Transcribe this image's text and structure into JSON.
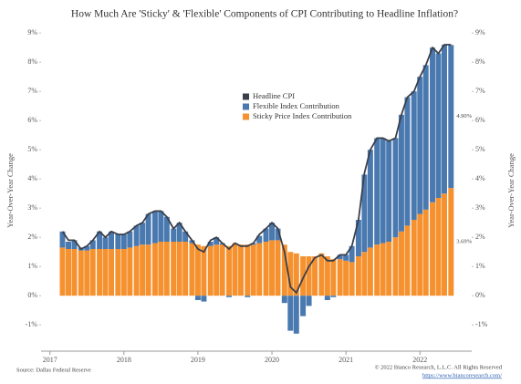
{
  "chart_data": {
    "type": "bar",
    "stacked": true,
    "title": "How Much Are 'Sticky' & 'Flexible' Components of CPI Contributing to Headline Inflation?",
    "ylabel": "Year-Over-Year Change",
    "y2label": "Year-Over-Year Change",
    "source": "Source: Dallas Federal Reserve",
    "copyright": "© 2022 Bianco Research, L.L.C. All Rights Reserved",
    "link": "https://www.biancoresearch.com/",
    "xlim": [
      2016.88,
      2022.7
    ],
    "xticks": [
      2017,
      2018,
      2019,
      2020,
      2021,
      2022
    ],
    "ylim": [
      -1.9,
      9.1
    ],
    "yticks": [
      {
        "value": -1,
        "label": "-1%"
      },
      {
        "value": 0,
        "label": "0%"
      },
      {
        "value": 1,
        "label": "1%"
      },
      {
        "value": 2,
        "label": "2%"
      },
      {
        "value": 3,
        "label": "3%"
      },
      {
        "value": 4,
        "label": "4%"
      },
      {
        "value": 5,
        "label": "5%"
      },
      {
        "value": 6,
        "label": "6%"
      },
      {
        "value": 7,
        "label": "7%"
      },
      {
        "value": 8,
        "label": "8%"
      },
      {
        "value": 9,
        "label": "9%"
      }
    ],
    "y2lim": [
      -1.9,
      9.1
    ],
    "y2ticks": [
      {
        "value": -1,
        "label": "-1%"
      },
      {
        "value": 0,
        "label": "0%"
      },
      {
        "value": 1,
        "label": "1%"
      },
      {
        "value": 2,
        "label": "2%"
      },
      {
        "value": 3,
        "label": "3%"
      },
      {
        "value": 4,
        "label": "4%"
      },
      {
        "value": 5,
        "label": "5%"
      },
      {
        "value": 6,
        "label": "6%"
      },
      {
        "value": 7,
        "label": "7%"
      },
      {
        "value": 8,
        "label": "8%"
      },
      {
        "value": 9,
        "label": "9%"
      }
    ],
    "legend": "upper center",
    "x": [
      2017.17,
      2017.25,
      2017.33,
      2017.42,
      2017.5,
      2017.58,
      2017.67,
      2017.75,
      2017.83,
      2017.92,
      2018.0,
      2018.08,
      2018.17,
      2018.25,
      2018.33,
      2018.42,
      2018.5,
      2018.58,
      2018.67,
      2018.75,
      2018.83,
      2018.92,
      2019.0,
      2019.08,
      2019.17,
      2019.25,
      2019.33,
      2019.42,
      2019.5,
      2019.58,
      2019.67,
      2019.75,
      2019.83,
      2019.92,
      2020.0,
      2020.08,
      2020.17,
      2020.25,
      2020.33,
      2020.42,
      2020.5,
      2020.58,
      2020.67,
      2020.75,
      2020.83,
      2020.92,
      2021.0,
      2021.08,
      2021.17,
      2021.25,
      2021.33,
      2021.42,
      2021.5,
      2021.58,
      2021.67,
      2021.75,
      2021.83,
      2021.92,
      2022.0,
      2022.08,
      2022.17,
      2022.25,
      2022.33,
      2022.42
    ],
    "series": [
      {
        "name": "Headline CPI",
        "type": "line",
        "color": "#3b3f4a",
        "values": [
          2.2,
          1.9,
          1.9,
          1.6,
          1.7,
          1.9,
          2.2,
          2.0,
          2.2,
          2.1,
          2.1,
          2.2,
          2.4,
          2.5,
          2.8,
          2.9,
          2.9,
          2.7,
          2.3,
          2.5,
          2.2,
          1.9,
          1.6,
          1.5,
          1.9,
          2.0,
          1.8,
          1.6,
          1.8,
          1.7,
          1.7,
          1.8,
          2.1,
          2.3,
          2.5,
          2.3,
          1.5,
          0.3,
          0.1,
          0.6,
          1.0,
          1.3,
          1.4,
          1.2,
          1.2,
          1.4,
          1.4,
          1.7,
          2.6,
          4.2,
          5.0,
          5.4,
          5.4,
          5.3,
          5.4,
          6.2,
          6.8,
          7.0,
          7.5,
          7.9,
          8.5,
          8.3,
          8.6,
          8.6
        ]
      },
      {
        "name": "Flexible Index Contribution",
        "type": "bar",
        "color": "#4a79b0",
        "values": [
          0.55,
          0.25,
          0.3,
          0.1,
          0.15,
          0.3,
          0.6,
          0.4,
          0.6,
          0.5,
          0.5,
          0.55,
          0.7,
          0.75,
          1.05,
          1.1,
          1.05,
          0.85,
          0.45,
          0.65,
          0.35,
          0.1,
          -0.15,
          -0.2,
          0.15,
          0.25,
          0.05,
          -0.05,
          0.0,
          0.0,
          -0.05,
          0.05,
          0.25,
          0.45,
          0.6,
          0.4,
          -0.25,
          -1.2,
          -1.3,
          -0.7,
          -0.35,
          0.0,
          0.0,
          -0.15,
          -0.05,
          0.15,
          0.2,
          0.55,
          1.25,
          2.65,
          3.35,
          3.65,
          3.6,
          3.45,
          3.4,
          4.0,
          4.4,
          4.4,
          4.7,
          4.95,
          5.3,
          4.95,
          5.1,
          4.9
        ]
      },
      {
        "name": "Sticky Price Index Contribution",
        "type": "bar",
        "color": "#f5922f",
        "values": [
          1.65,
          1.6,
          1.6,
          1.55,
          1.55,
          1.6,
          1.6,
          1.6,
          1.6,
          1.6,
          1.6,
          1.65,
          1.7,
          1.75,
          1.75,
          1.8,
          1.85,
          1.85,
          1.85,
          1.85,
          1.85,
          1.8,
          1.75,
          1.7,
          1.7,
          1.75,
          1.75,
          1.7,
          1.8,
          1.75,
          1.75,
          1.75,
          1.8,
          1.85,
          1.9,
          1.9,
          1.75,
          1.5,
          1.45,
          1.35,
          1.35,
          1.35,
          1.45,
          1.35,
          1.25,
          1.25,
          1.2,
          1.15,
          1.35,
          1.5,
          1.65,
          1.75,
          1.8,
          1.85,
          2.0,
          2.2,
          2.4,
          2.6,
          2.8,
          2.95,
          3.2,
          3.35,
          3.5,
          3.69
        ]
      }
    ],
    "annotations": [
      {
        "value": 4.9,
        "label": "4.90%",
        "color": "#4a79b0"
      },
      {
        "value": 3.69,
        "label": "3.69%",
        "color": "#f5922f"
      }
    ]
  }
}
